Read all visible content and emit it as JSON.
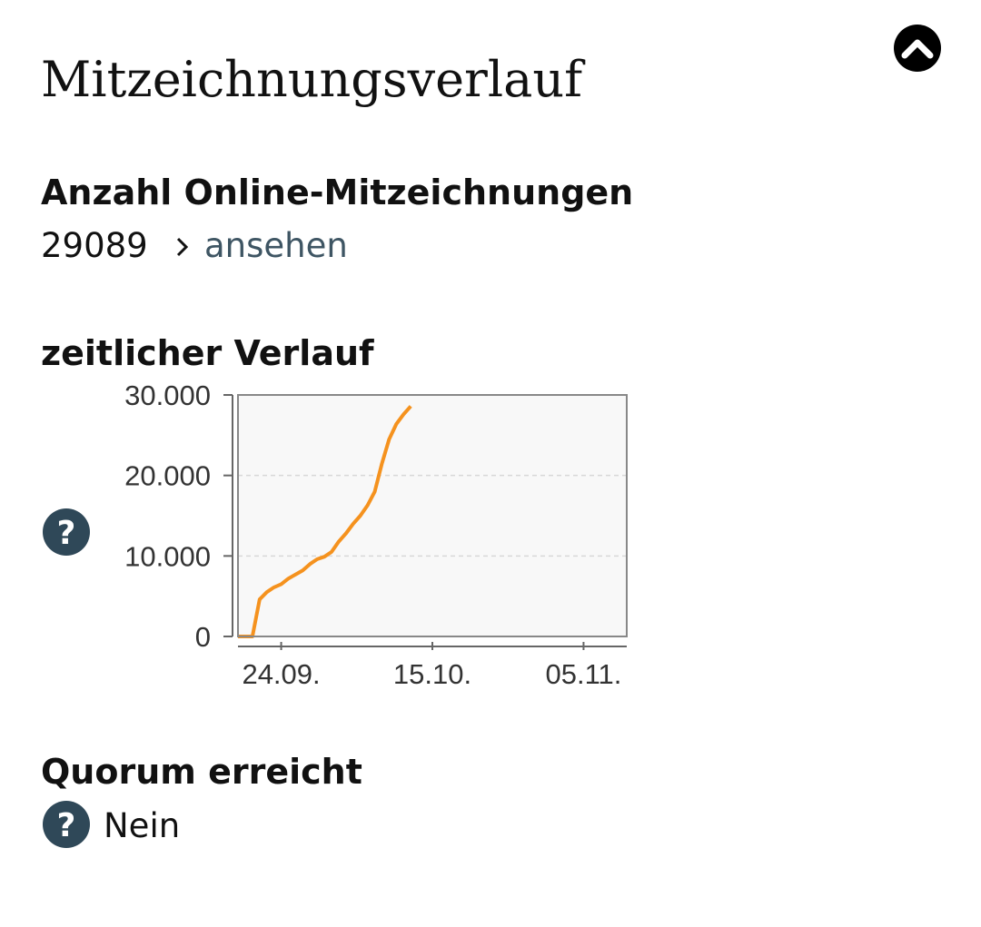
{
  "header": {
    "title": "Mitzeichnungsverlauf"
  },
  "signatures": {
    "label": "Anzahl Online-Mitzeichnungen",
    "count": 29089,
    "link": "ansehen"
  },
  "timeline": {
    "label": "zeitlicher Verlauf"
  },
  "help_icon": "?",
  "chart_data": {
    "type": "line",
    "x": [
      "18.09.",
      "19.09.",
      "20.09.",
      "21.09.",
      "22.09.",
      "23.09.",
      "24.09.",
      "25.09.",
      "26.09.",
      "27.09.",
      "28.09.",
      "29.09.",
      "30.09.",
      "01.10.",
      "02.10.",
      "03.10.",
      "04.10.",
      "05.10.",
      "06.10.",
      "07.10.",
      "08.10.",
      "09.10.",
      "10.10.",
      "11.10.",
      "12.10."
    ],
    "values": [
      0,
      0,
      0,
      4600,
      5500,
      6100,
      6500,
      7200,
      7700,
      8200,
      9000,
      9600,
      9900,
      10500,
      11800,
      12800,
      14000,
      15000,
      16300,
      18000,
      21500,
      24500,
      26400,
      27600,
      28600
    ],
    "color": "#f5921e",
    "xlim": [
      "18.09.",
      "11.11."
    ],
    "xticks": [
      "24.09.",
      "15.10.",
      "05.11."
    ],
    "ylim": [
      0,
      30000
    ],
    "yticks": [
      {
        "value": 0,
        "label": "0"
      },
      {
        "value": 10000,
        "label": "10.000"
      },
      {
        "value": 20000,
        "label": "20.000"
      },
      {
        "value": 30000,
        "label": "30.000"
      }
    ],
    "grid": true
  },
  "quorum": {
    "label": "Quorum erreicht",
    "value": "Nein"
  }
}
